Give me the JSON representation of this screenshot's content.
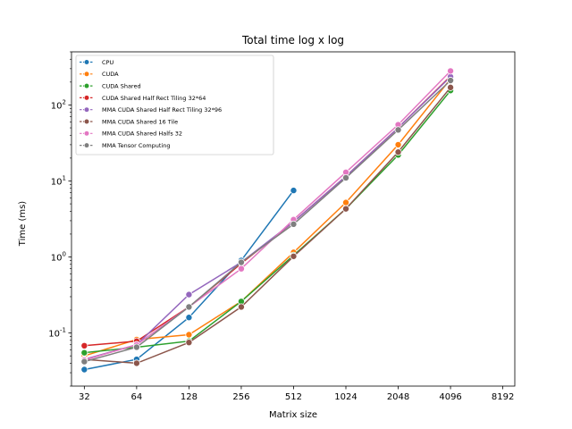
{
  "chart_data": {
    "type": "line",
    "title": "Total time log x log",
    "xlabel": "Matrix size",
    "ylabel": "Time (ms)",
    "x_scale": "log2",
    "y_scale": "log10",
    "xlim": [
      27,
      9600
    ],
    "ylim": [
      0.02,
      500
    ],
    "x_ticks": [
      32,
      64,
      128,
      256,
      512,
      1024,
      2048,
      4096,
      8192
    ],
    "x_tick_labels": [
      "32",
      "64",
      "128",
      "256",
      "512",
      "1024",
      "2048",
      "4096",
      "8192"
    ],
    "y_ticks": [
      0.1,
      1,
      10,
      100
    ],
    "grid": false,
    "legend_position": "upper-left",
    "series": [
      {
        "name": "CPU",
        "color": "#1f77b4",
        "x": [
          32,
          64,
          128,
          256,
          512
        ],
        "values": [
          0.033,
          0.045,
          0.16,
          0.9,
          7.5
        ]
      },
      {
        "name": "CUDA",
        "color": "#ff7f0e",
        "x": [
          32,
          64,
          128,
          256,
          512,
          1024,
          2048,
          4096
        ],
        "values": [
          0.05,
          0.082,
          0.095,
          0.26,
          1.15,
          5.2,
          30,
          220
        ]
      },
      {
        "name": "CUDA Shared",
        "color": "#2ca02c",
        "x": [
          32,
          64,
          128,
          256,
          512,
          1024,
          2048,
          4096
        ],
        "values": [
          0.055,
          0.065,
          0.078,
          0.26,
          1.05,
          4.3,
          22,
          155
        ]
      },
      {
        "name": "CUDA Shared Half Rect Tiling 32*64",
        "color": "#d62728",
        "x": [
          32,
          64,
          128,
          256,
          512,
          1024,
          2048,
          4096
        ],
        "values": [
          0.068,
          0.078,
          0.22,
          0.82,
          2.9,
          11.5,
          50,
          240
        ]
      },
      {
        "name": "MMA CUDA Shared Half Rect Tiling 32*96",
        "color": "#9467bd",
        "x": [
          32,
          64,
          128,
          256,
          512,
          1024,
          2048,
          4096
        ],
        "values": [
          0.045,
          0.07,
          0.32,
          0.85,
          2.9,
          11.5,
          50,
          235
        ]
      },
      {
        "name": "MMA CUDA Shared 16 Tile",
        "color": "#8c564b",
        "x": [
          32,
          64,
          128,
          256,
          512,
          1024,
          2048,
          4096
        ],
        "values": [
          0.045,
          0.04,
          0.075,
          0.22,
          1.02,
          4.3,
          24,
          170
        ]
      },
      {
        "name": "MMA CUDA Shared Halfs 32",
        "color": "#e377c2",
        "x": [
          32,
          64,
          128,
          256,
          512,
          1024,
          2048,
          4096
        ],
        "values": [
          0.044,
          0.07,
          0.22,
          0.7,
          3.1,
          13,
          55,
          280
        ]
      },
      {
        "name": "MMA Tensor Computing",
        "color": "#7f7f7f",
        "x": [
          32,
          64,
          128,
          256,
          512,
          1024,
          2048,
          4096
        ],
        "values": [
          0.042,
          0.065,
          0.22,
          0.85,
          2.7,
          11,
          47,
          210
        ]
      }
    ]
  }
}
